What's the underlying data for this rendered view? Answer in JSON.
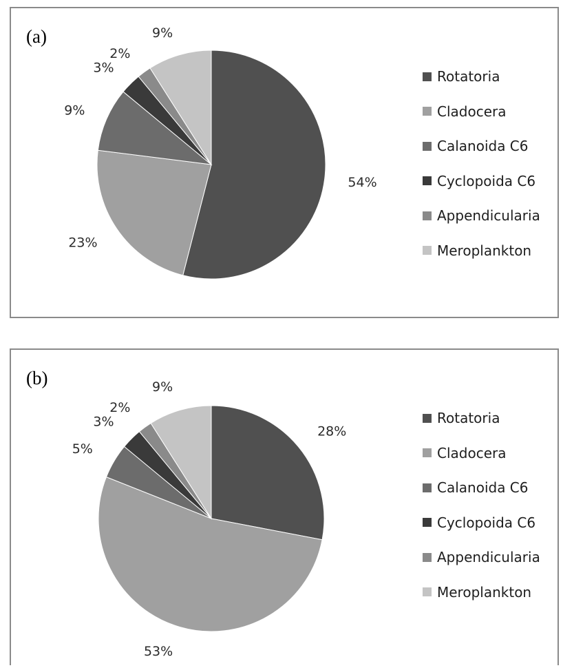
{
  "chart_data": [
    {
      "type": "pie",
      "panel_label": "(a)",
      "categories": [
        "Rotatoria",
        "Cladocera",
        "Calanoida C6",
        "Cyclopoida C6",
        "Appendicularia",
        "Meroplankton"
      ],
      "values": [
        54,
        23,
        9,
        3,
        2,
        9
      ],
      "labels": [
        "54%",
        "23%",
        "9%",
        "3%",
        "2%",
        "9%"
      ],
      "colors": [
        "#505050",
        "#a0a0a0",
        "#6c6c6c",
        "#3a3a3a",
        "#8a8a8a",
        "#c4c4c4"
      ],
      "start": "12 o'clock, clockwise",
      "legend_position": "right"
    },
    {
      "type": "pie",
      "panel_label": "(b)",
      "categories": [
        "Rotatoria",
        "Cladocera",
        "Calanoida C6",
        "Cyclopoida C6",
        "Appendicularia",
        "Meroplankton"
      ],
      "values": [
        28,
        53,
        5,
        3,
        2,
        9
      ],
      "labels": [
        "28%",
        "53%",
        "5%",
        "3%",
        "2%",
        "9%"
      ],
      "colors": [
        "#505050",
        "#a0a0a0",
        "#6c6c6c",
        "#3a3a3a",
        "#8a8a8a",
        "#c4c4c4"
      ],
      "start": "12 o'clock, clockwise",
      "legend_position": "right"
    }
  ]
}
